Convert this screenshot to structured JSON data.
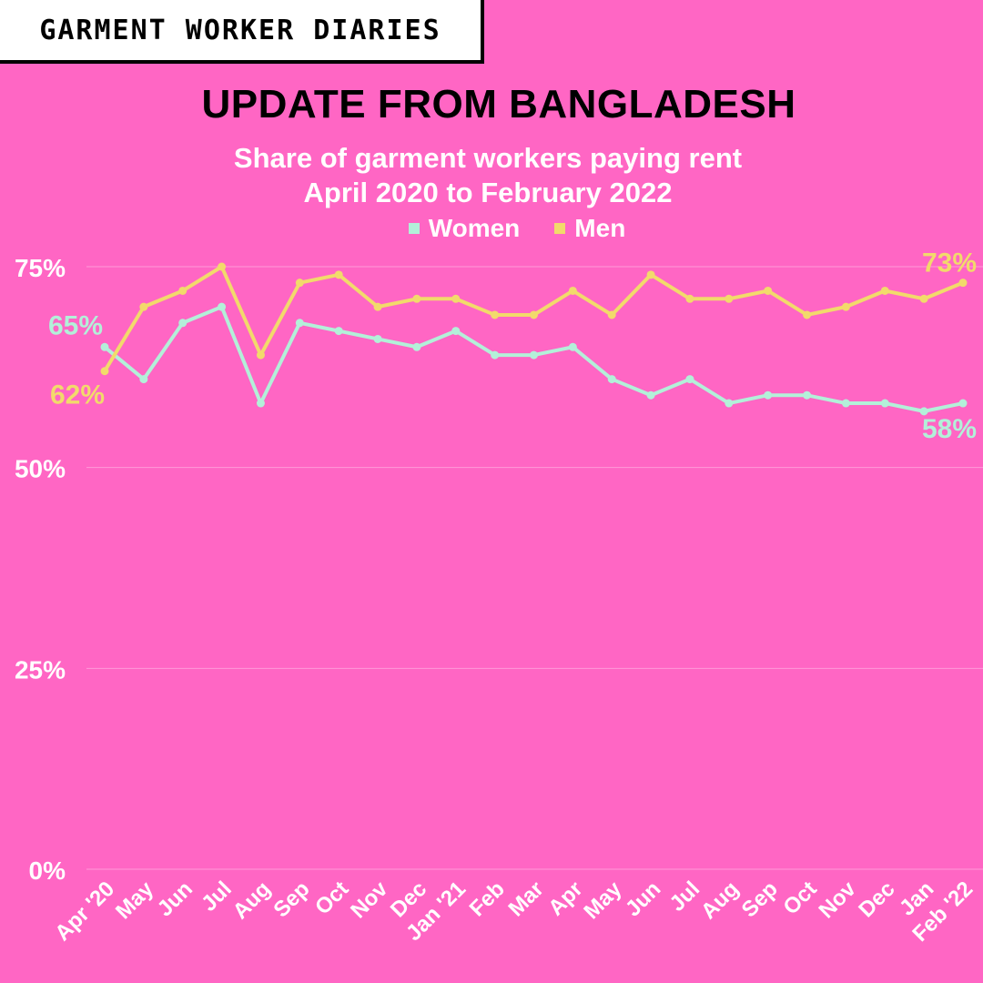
{
  "brand": {
    "label": "GARMENT WORKER DIARIES"
  },
  "colors": {
    "background": "#ff66c4",
    "women": "#b3f0d9",
    "men": "#f2da6b",
    "text": "#ffffff"
  },
  "chart_data": {
    "type": "line",
    "title": "UPDATE FROM BANGLADESH",
    "subtitle": [
      "Share of garment workers paying rent",
      "April 2020 to February 2022"
    ],
    "categories": [
      "Apr '20",
      "May",
      "Jun",
      "Jul",
      "Aug",
      "Sep",
      "Oct",
      "Nov",
      "Dec",
      "Jan '21",
      "Feb",
      "Mar",
      "Apr",
      "May",
      "Jun",
      "Jul",
      "Aug",
      "Sep",
      "Oct",
      "Nov",
      "Dec",
      "Jan",
      "Feb '22"
    ],
    "series": [
      {
        "name": "Women",
        "values": [
          65,
          61,
          68,
          70,
          58,
          68,
          67,
          66,
          65,
          67,
          64,
          64,
          65,
          61,
          59,
          61,
          58,
          59,
          59,
          58,
          58,
          57,
          58
        ]
      },
      {
        "name": "Men",
        "values": [
          62,
          70,
          72,
          75,
          64,
          73,
          74,
          70,
          71,
          71,
          69,
          69,
          72,
          69,
          74,
          71,
          71,
          72,
          69,
          70,
          72,
          71,
          73
        ]
      }
    ],
    "data_labels": [
      {
        "series": "Women",
        "index": 0,
        "text": "65%"
      },
      {
        "series": "Men",
        "index": 0,
        "text": "62%"
      },
      {
        "series": "Men",
        "index": 22,
        "text": "73%"
      },
      {
        "series": "Women",
        "index": 22,
        "text": "58%"
      }
    ],
    "yticks": [
      "0%",
      "25%",
      "50%",
      "75%"
    ],
    "ylim": [
      0,
      75
    ],
    "grid": true,
    "legend": "top-center"
  }
}
